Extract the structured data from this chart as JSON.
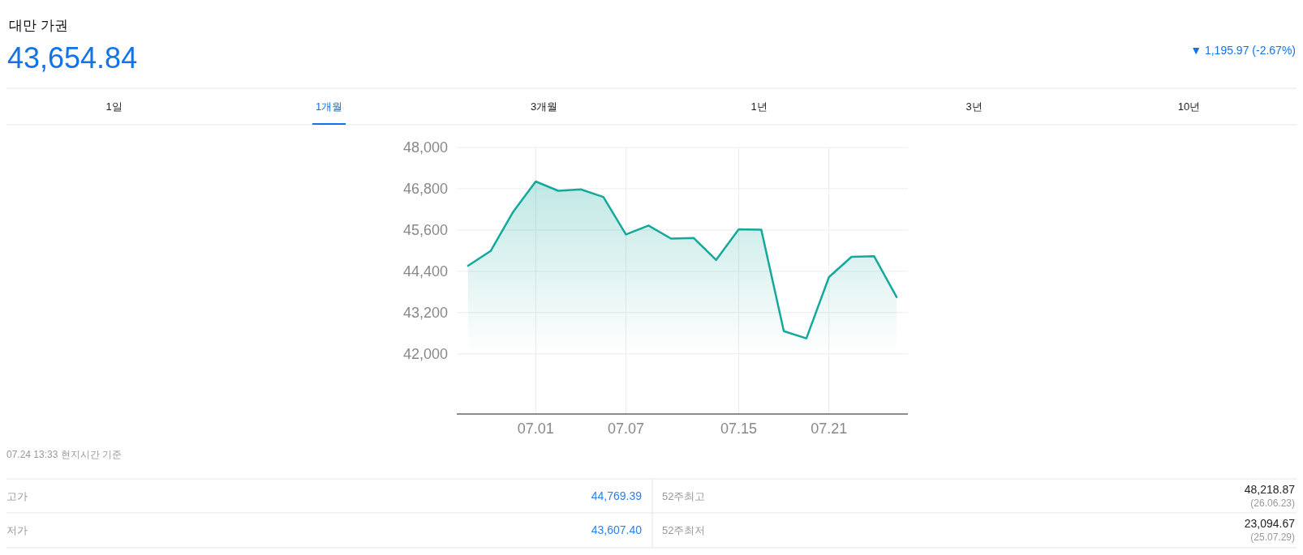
{
  "chart_data": {
    "type": "area",
    "title": "대만 가권",
    "subtitle": "43,654.84",
    "annotations": [
      "▼ 1,195.97 (-2.67%)",
      "1일",
      "1개월",
      "3개월",
      "1년",
      "3년",
      "10년",
      "07.24 13:33 현지시간 기준",
      "고가",
      "44,769.39",
      "52주최고",
      "48,218.87",
      "(26.06.23)",
      "저가",
      "43,607.40",
      "52주최저",
      "23,094.67",
      "(25.07.29)"
    ],
    "categories": [
      null,
      null,
      null,
      "07.01",
      null,
      null,
      null,
      "07.07",
      null,
      null,
      null,
      null,
      "07.15",
      null,
      null,
      null,
      "07.21",
      null,
      null,
      null
    ],
    "series": [
      {
        "color": "#14a99c",
        "values": [
          44560,
          44990,
          46130,
          47010,
          46740,
          46780,
          46560,
          45470,
          45730,
          45350,
          45370,
          44730,
          45620,
          45610,
          42660,
          42450,
          44230,
          44820,
          44840,
          43650
        ]
      }
    ],
    "ylim": [
      40250,
      48000
    ],
    "yticks": [
      {
        "value": 42000,
        "label": "42,000"
      },
      {
        "value": 43200,
        "label": "43,200"
      },
      {
        "value": 44400,
        "label": "44,400"
      },
      {
        "value": 45600,
        "label": "45,600"
      },
      {
        "value": 46800,
        "label": "46,800"
      },
      {
        "value": 48000,
        "label": "48,000"
      }
    ],
    "grid": true
  }
}
